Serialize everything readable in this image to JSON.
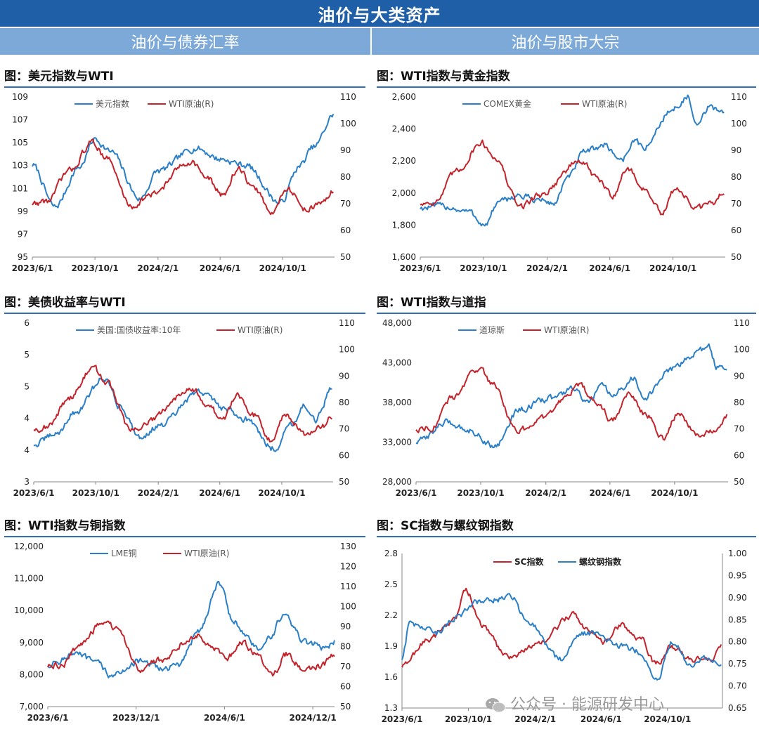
{
  "header": {
    "title": "油价与大类资产",
    "left_section": "油价与债券汇率",
    "right_section": "油价与股市大宗"
  },
  "watermark": {
    "text": "公众号 · 能源研发中心",
    "icon": "wechat-icon"
  },
  "chart_data": [
    {
      "id": "usd",
      "type": "line",
      "title": "图：美元指数与WTI",
      "x_start": "2023-06-01",
      "x_end": "2025-01-10",
      "xticks": [
        "2023/6/1",
        "2023/10/1",
        "2024/2/1",
        "2024/6/1",
        "2024/10/1"
      ],
      "ylim": [
        95,
        111
      ],
      "yticks": [
        "95",
        "97",
        "99",
        "101",
        "103",
        "105",
        "107",
        "109"
      ],
      "ylim2": [
        50,
        110
      ],
      "yticks2": [
        "50",
        "60",
        "70",
        "80",
        "90",
        "100",
        "110"
      ],
      "legend_style": "normal",
      "series": [
        {
          "name": "美元指数",
          "axis": "left",
          "color": "#2a7fc7",
          "x": [
            "2023-06-01",
            "2023-07-15",
            "2023-09-01",
            "2023-10-01",
            "2023-11-01",
            "2023-12-28",
            "2024-02-01",
            "2024-04-15",
            "2024-06-01",
            "2024-07-20",
            "2024-09-27",
            "2024-11-01",
            "2024-12-01",
            "2025-01-10"
          ],
          "y": [
            104.2,
            100.0,
            104.0,
            106.8,
            105.5,
            100.8,
            103.6,
            105.9,
            104.8,
            104.2,
            100.4,
            104.0,
            106.0,
            109.3
          ]
        },
        {
          "name": "WTI原油(R)",
          "axis": "right",
          "color": "#c3232a",
          "x": [
            "2023-06-01",
            "2023-07-01",
            "2023-08-10",
            "2023-09-27",
            "2023-10-20",
            "2023-12-12",
            "2024-01-15",
            "2024-04-05",
            "2024-05-10",
            "2024-06-05",
            "2024-07-05",
            "2024-08-10",
            "2024-09-10",
            "2024-10-07",
            "2024-11-15",
            "2024-12-15",
            "2025-01-10"
          ],
          "y": [
            70,
            71,
            82,
            93,
            88,
            69,
            73,
            86,
            79,
            73,
            83,
            75,
            66,
            76,
            68,
            70,
            75
          ]
        }
      ]
    },
    {
      "id": "gold",
      "type": "line",
      "title": "图：WTI指数与黄金指数",
      "x_start": "2023-06-01",
      "x_end": "2025-01-10",
      "xticks": [
        "2023/6/1",
        "2023/10/1",
        "2024/2/1",
        "2024/6/1",
        "2024/10/1"
      ],
      "ylim": [
        1600,
        2800
      ],
      "yticks": [
        "1,600",
        "1,800",
        "2,000",
        "2,200",
        "2,400",
        "2,600"
      ],
      "ylim2": [
        50,
        110
      ],
      "yticks2": [
        "50",
        "60",
        "70",
        "80",
        "90",
        "100",
        "110"
      ],
      "legend_style": "normal",
      "series": [
        {
          "name": "COMEX黄金",
          "axis": "left",
          "color": "#2a7fc7",
          "x": [
            "2023-06-01",
            "2023-07-20",
            "2023-09-01",
            "2023-10-05",
            "2023-10-28",
            "2023-12-04",
            "2024-01-15",
            "2024-02-14",
            "2024-03-10",
            "2024-04-12",
            "2024-05-20",
            "2024-06-25",
            "2024-07-17",
            "2024-08-07",
            "2024-09-25",
            "2024-10-30",
            "2024-11-14",
            "2024-12-10",
            "2025-01-10"
          ],
          "y": [
            1970,
            1980,
            1940,
            1840,
            2000,
            2060,
            2030,
            2000,
            2180,
            2380,
            2440,
            2330,
            2470,
            2420,
            2690,
            2800,
            2570,
            2720,
            2690
          ]
        },
        {
          "name": "WTI原油(R)",
          "axis": "right",
          "color": "#c3232a",
          "x": [
            "2023-06-01",
            "2023-07-01",
            "2023-08-10",
            "2023-09-27",
            "2023-10-20",
            "2023-12-12",
            "2024-01-15",
            "2024-04-05",
            "2024-05-10",
            "2024-06-05",
            "2024-07-05",
            "2024-08-10",
            "2024-09-10",
            "2024-10-07",
            "2024-11-15",
            "2024-12-15",
            "2025-01-10"
          ],
          "y": [
            70,
            71,
            82,
            93,
            88,
            69,
            73,
            86,
            79,
            73,
            83,
            75,
            66,
            76,
            68,
            70,
            75
          ]
        }
      ]
    },
    {
      "id": "ust",
      "type": "line",
      "title": "图：美债收益率与WTI",
      "x_start": "2023-06-01",
      "x_end": "2025-01-10",
      "xticks": [
        "2023/6/1",
        "2023/10/1",
        "2024/2/1",
        "2024/6/1",
        "2024/10/1"
      ],
      "ylim": [
        3,
        6
      ],
      "yticks": [
        "3",
        "4",
        "4",
        "5",
        "5",
        "6"
      ],
      "ylim2": [
        50,
        110
      ],
      "yticks2": [
        "50",
        "60",
        "70",
        "80",
        "90",
        "100",
        "110"
      ],
      "legend_style": "normal",
      "series": [
        {
          "name": "美国:国债收益率:10年",
          "axis": "left",
          "color": "#2a7fc7",
          "x": [
            "2023-06-01",
            "2023-07-15",
            "2023-08-20",
            "2023-10-19",
            "2023-11-15",
            "2023-12-28",
            "2024-02-01",
            "2024-04-25",
            "2024-06-10",
            "2024-07-20",
            "2024-09-16",
            "2024-10-20",
            "2024-11-15",
            "2024-12-05",
            "2025-01-10"
          ],
          "y": [
            3.7,
            3.9,
            4.3,
            4.98,
            4.45,
            3.85,
            4.05,
            4.7,
            4.4,
            4.2,
            3.63,
            4.1,
            4.45,
            4.15,
            4.78
          ]
        },
        {
          "name": "WTI原油(R)",
          "axis": "right",
          "color": "#c3232a",
          "x": [
            "2023-06-01",
            "2023-07-01",
            "2023-08-10",
            "2023-09-27",
            "2023-10-20",
            "2023-12-12",
            "2024-01-15",
            "2024-04-05",
            "2024-05-10",
            "2024-06-05",
            "2024-07-05",
            "2024-08-10",
            "2024-09-10",
            "2024-10-07",
            "2024-11-15",
            "2024-12-15",
            "2025-01-10"
          ],
          "y": [
            70,
            71,
            82,
            93,
            88,
            69,
            73,
            86,
            79,
            73,
            83,
            75,
            66,
            76,
            68,
            70,
            75
          ]
        }
      ]
    },
    {
      "id": "dow",
      "type": "line",
      "title": "图：WTI指数与道指",
      "x_start": "2023-06-01",
      "x_end": "2025-01-10",
      "xticks": [
        "2023/6/1",
        "2023/10/1",
        "2024/2/1",
        "2024/6/1",
        "2024/10/1"
      ],
      "ylim": [
        28000,
        48000
      ],
      "yticks": [
        "28,000",
        "33,000",
        "38,000",
        "43,000",
        "48,000"
      ],
      "ylim2": [
        50,
        110
      ],
      "yticks2": [
        "50",
        "60",
        "70",
        "80",
        "90",
        "100",
        "110"
      ],
      "legend_style": "normal",
      "series": [
        {
          "name": "道琼斯",
          "axis": "left",
          "color": "#2a7fc7",
          "x": [
            "2023-06-01",
            "2023-07-31",
            "2023-09-10",
            "2023-10-27",
            "2023-12-15",
            "2024-02-15",
            "2024-03-28",
            "2024-04-18",
            "2024-05-17",
            "2024-06-05",
            "2024-07-17",
            "2024-08-05",
            "2024-09-30",
            "2024-10-18",
            "2024-11-11",
            "2024-12-04",
            "2024-12-20",
            "2025-01-10"
          ],
          "y": [
            33000,
            35500,
            34500,
            32500,
            37200,
            38600,
            39800,
            37800,
            40000,
            38800,
            41000,
            38700,
            42300,
            43200,
            44300,
            45000,
            42400,
            42500
          ]
        },
        {
          "name": "WTI原油(R)",
          "axis": "right",
          "color": "#c3232a",
          "x": [
            "2023-06-01",
            "2023-07-01",
            "2023-08-10",
            "2023-09-27",
            "2023-10-20",
            "2023-12-12",
            "2024-01-15",
            "2024-04-05",
            "2024-05-10",
            "2024-06-05",
            "2024-07-05",
            "2024-08-10",
            "2024-09-10",
            "2024-10-07",
            "2024-11-15",
            "2024-12-15",
            "2025-01-10"
          ],
          "y": [
            70,
            71,
            82,
            93,
            88,
            69,
            73,
            86,
            79,
            73,
            83,
            75,
            66,
            76,
            68,
            70,
            75
          ]
        }
      ]
    },
    {
      "id": "copper",
      "type": "line",
      "title": "图：WTI指数与铜指数",
      "x_start": "2023-06-01",
      "x_end": "2025-01-15",
      "xticks": [
        "2023/6/1",
        "2023/12/1",
        "2024/6/1",
        "2024/12/1"
      ],
      "ylim": [
        7000,
        12000
      ],
      "yticks": [
        "7,000",
        "8,000",
        "9,000",
        "10,000",
        "11,000",
        "12,000"
      ],
      "ylim2": [
        50,
        130
      ],
      "yticks2": [
        "50",
        "60",
        "70",
        "80",
        "90",
        "100",
        "110",
        "120",
        "130"
      ],
      "legend_style": "normal",
      "series": [
        {
          "name": "LME铜",
          "axis": "left",
          "color": "#2a7fc7",
          "x": [
            "2023-06-01",
            "2023-07-28",
            "2023-09-05",
            "2023-10-15",
            "2023-12-01",
            "2024-01-25",
            "2024-02-28",
            "2024-04-10",
            "2024-05-20",
            "2024-06-20",
            "2024-07-20",
            "2024-08-07",
            "2024-09-02",
            "2024-10-01",
            "2024-11-15",
            "2024-12-01",
            "2024-12-30",
            "2025-01-15"
          ],
          "y": [
            8300,
            8650,
            8400,
            7950,
            8400,
            8200,
            8300,
            9400,
            10850,
            9650,
            9150,
            8800,
            9100,
            9850,
            9000,
            8950,
            8800,
            9050
          ]
        },
        {
          "name": "WTI原油(R)",
          "axis": "right",
          "color": "#c3232a",
          "x": [
            "2023-06-01",
            "2023-07-01",
            "2023-08-10",
            "2023-09-27",
            "2023-10-20",
            "2023-12-12",
            "2024-01-15",
            "2024-04-05",
            "2024-05-10",
            "2024-06-05",
            "2024-07-05",
            "2024-08-10",
            "2024-09-10",
            "2024-10-07",
            "2024-11-15",
            "2024-12-15",
            "2025-01-15"
          ],
          "y": [
            70,
            71,
            82,
            93,
            88,
            69,
            73,
            86,
            79,
            73,
            83,
            75,
            66,
            76,
            68,
            70,
            75
          ]
        }
      ]
    },
    {
      "id": "rebar",
      "type": "line",
      "title": "图：SC指数与螺纹钢指数",
      "x_start": "2023-06-01",
      "x_end": "2025-01-10",
      "xticks": [
        "2023/6/1",
        "2023/10/1",
        "2024/2/1",
        "2024/6/1",
        "2024/10/1"
      ],
      "ylim": [
        1.3,
        2.8
      ],
      "yticks": [
        "1.3",
        "1.6",
        "1.9",
        "2.2",
        "2.5",
        "2.8"
      ],
      "ylim2": [
        0.65,
        1.0
      ],
      "yticks2": [
        "0.65",
        "0.70",
        "0.75",
        "0.80",
        "0.85",
        "0.90",
        "0.95",
        "1.00"
      ],
      "legend_style": "bold",
      "series": [
        {
          "name": "SC指数",
          "axis": "left",
          "color": "#c3232a",
          "x": [
            "2023-06-01",
            "2023-07-15",
            "2023-09-05",
            "2023-09-27",
            "2023-10-25",
            "2023-12-12",
            "2024-02-01",
            "2024-04-10",
            "2024-05-01",
            "2024-06-05",
            "2024-07-12",
            "2024-08-15",
            "2024-09-10",
            "2024-10-08",
            "2024-11-15",
            "2024-12-20",
            "2025-01-10"
          ],
          "y": [
            1.7,
            1.95,
            2.15,
            2.45,
            2.1,
            1.8,
            1.9,
            2.2,
            2.1,
            1.95,
            2.1,
            1.95,
            1.72,
            1.9,
            1.77,
            1.78,
            1.9
          ]
        },
        {
          "name": "螺纹钢指数",
          "axis": "right",
          "color": "#2a7fc7",
          "x": [
            "2023-06-01",
            "2023-06-15",
            "2023-08-05",
            "2023-09-01",
            "2023-10-20",
            "2023-12-20",
            "2024-01-15",
            "2024-03-20",
            "2024-04-25",
            "2024-05-20",
            "2024-07-10",
            "2024-08-05",
            "2024-09-12",
            "2024-10-08",
            "2024-11-15",
            "2024-12-10",
            "2025-01-10"
          ],
          "y": [
            0.76,
            0.84,
            0.82,
            0.85,
            0.89,
            0.9,
            0.85,
            0.76,
            0.82,
            0.82,
            0.79,
            0.78,
            0.715,
            0.8,
            0.745,
            0.76,
            0.75
          ]
        }
      ]
    }
  ]
}
